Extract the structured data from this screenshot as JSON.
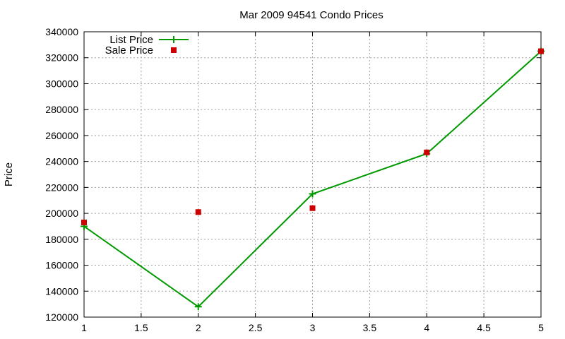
{
  "chart_data": {
    "type": "line",
    "title": "Mar 2009 94541 Condo Prices",
    "xlabel": "",
    "ylabel": "Price",
    "xlim": [
      1,
      5
    ],
    "ylim": [
      120000,
      340000
    ],
    "xticks": [
      "1",
      "1.5",
      "2",
      "2.5",
      "3",
      "3.5",
      "4",
      "4.5",
      "5"
    ],
    "xtick_values": [
      1,
      1.5,
      2,
      2.5,
      3,
      3.5,
      4,
      4.5,
      5
    ],
    "yticks": [
      "120000",
      "140000",
      "160000",
      "180000",
      "200000",
      "220000",
      "240000",
      "260000",
      "280000",
      "300000",
      "320000",
      "340000"
    ],
    "ytick_values": [
      120000,
      140000,
      160000,
      180000,
      200000,
      220000,
      240000,
      260000,
      280000,
      300000,
      320000,
      340000
    ],
    "grid": true,
    "legend_position": "top-left",
    "series": [
      {
        "name": "List Price",
        "style": "line-with-plus-markers",
        "color": "#009900",
        "x": [
          1,
          2,
          3,
          4,
          5
        ],
        "y": [
          190000,
          128000,
          215000,
          246000,
          325000
        ]
      },
      {
        "name": "Sale Price",
        "style": "square-markers",
        "color": "#cc0000",
        "x": [
          1,
          2,
          3,
          4,
          5
        ],
        "y": [
          193000,
          201000,
          204000,
          247000,
          325000
        ]
      }
    ]
  }
}
